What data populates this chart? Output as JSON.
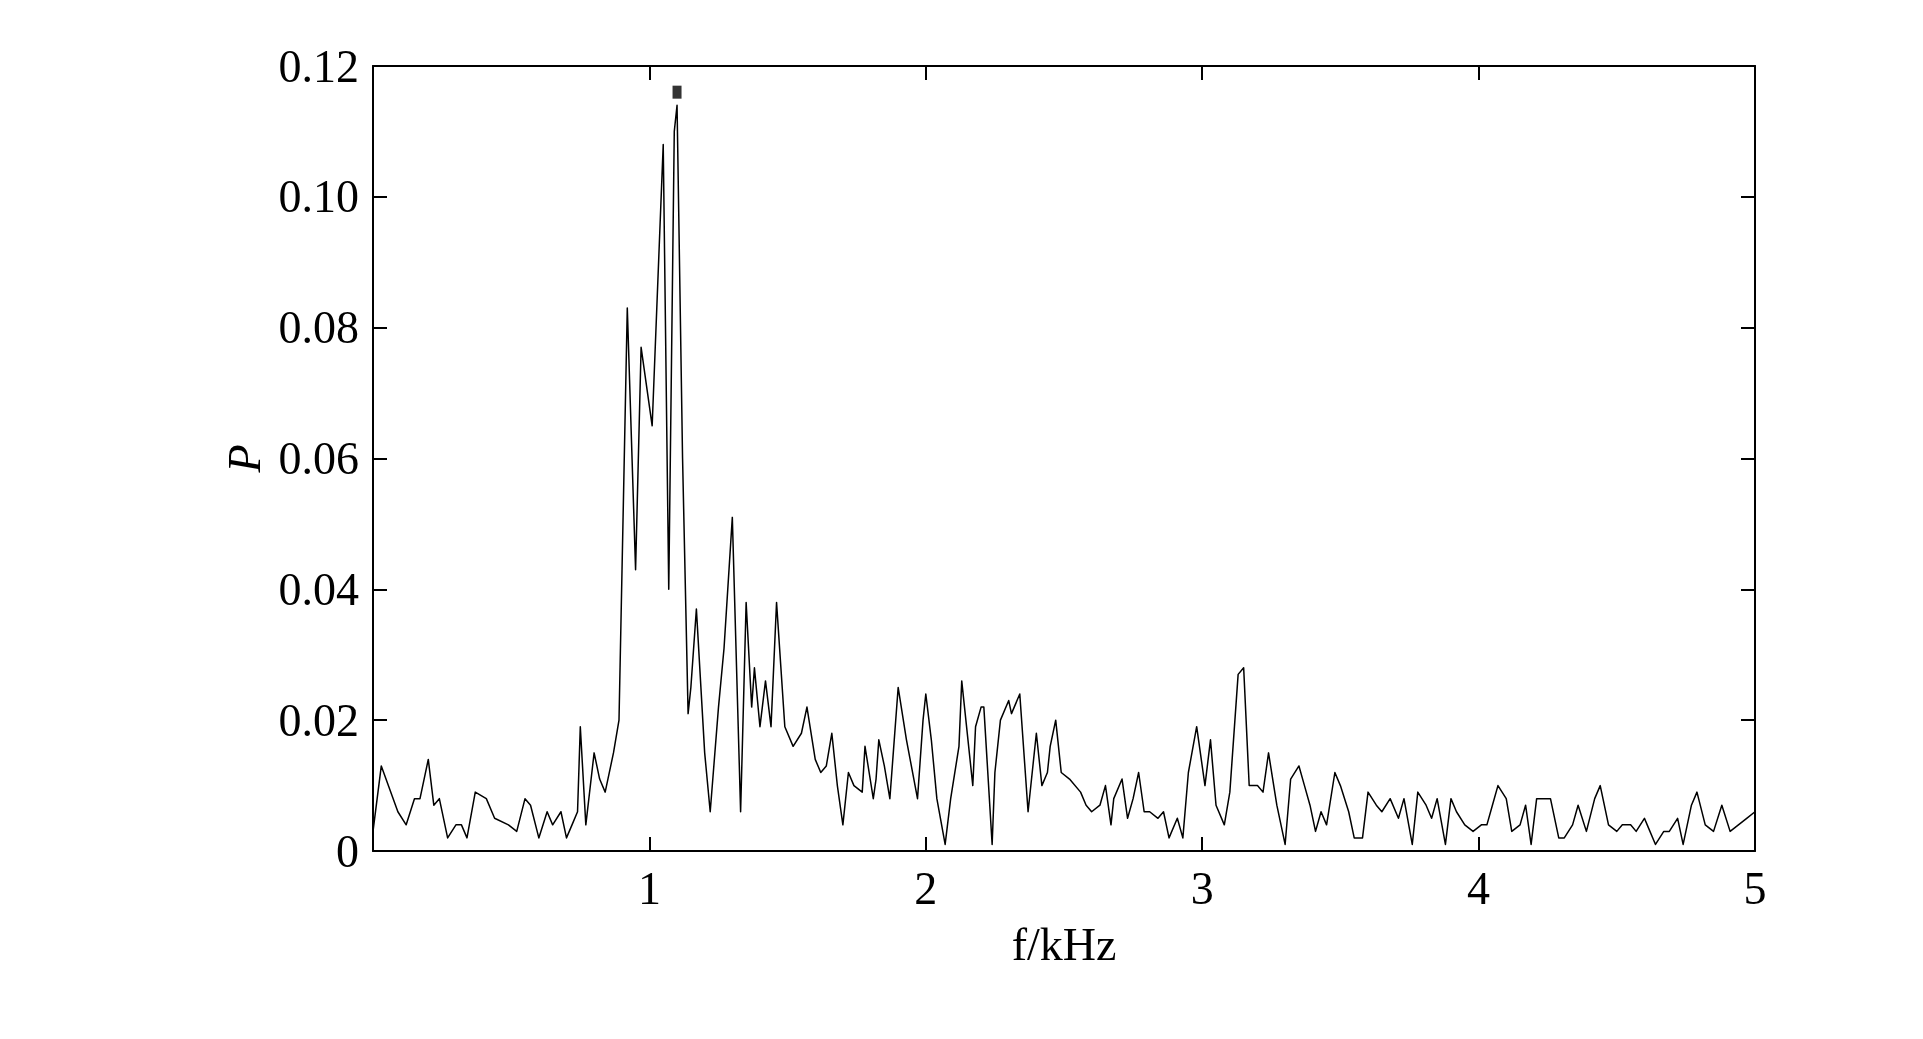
{
  "chart_data": {
    "type": "line",
    "xlabel": "f/kHz",
    "ylabel": "P",
    "xlim": [
      0,
      5
    ],
    "ylim": [
      0,
      0.12
    ],
    "xticks": [
      {
        "value": 0,
        "label": null
      },
      1,
      2,
      3,
      4,
      5
    ],
    "yticks": [
      0,
      0.02,
      0.04,
      0.06,
      0.08,
      {
        "value": 0.1,
        "label": "0.10"
      },
      0.12
    ],
    "grid": false,
    "series": [
      {
        "color": "#000000",
        "marker": "none",
        "x": [
          0,
          0.03,
          0.09,
          0.12,
          0.15,
          0.17,
          0.2,
          0.22,
          0.24,
          0.27,
          0.3,
          0.32,
          0.34,
          0.37,
          0.41,
          0.44,
          0.49,
          0.52,
          0.55,
          0.57,
          0.6,
          0.63,
          0.65,
          0.68,
          0.7,
          0.72,
          0.74,
          0.75,
          0.77,
          0.8,
          0.82,
          0.84,
          0.87,
          0.89,
          0.92,
          0.95,
          0.97,
          1.01,
          1.05,
          1.07,
          1.09,
          1.1,
          1.12,
          1.14,
          1.15,
          1.17,
          1.2,
          1.22,
          1.25,
          1.27,
          1.3,
          1.33,
          1.35,
          1.37,
          1.38,
          1.4,
          1.42,
          1.44,
          1.46,
          1.49,
          1.52,
          1.55,
          1.57,
          1.6,
          1.62,
          1.64,
          1.66,
          1.68,
          1.7,
          1.72,
          1.74,
          1.77,
          1.78,
          1.81,
          1.82,
          1.83,
          1.85,
          1.87,
          1.9,
          1.93,
          1.97,
          1.99,
          2.0,
          2.02,
          2.04,
          2.07,
          2.09,
          2.12,
          2.13,
          2.17,
          2.18,
          2.2,
          2.21,
          2.24,
          2.25,
          2.27,
          2.3,
          2.31,
          2.34,
          2.37,
          2.4,
          2.42,
          2.44,
          2.45,
          2.47,
          2.49,
          2.52,
          2.56,
          2.58,
          2.6,
          2.63,
          2.65,
          2.67,
          2.68,
          2.71,
          2.73,
          2.75,
          2.77,
          2.79,
          2.81,
          2.84,
          2.86,
          2.88,
          2.91,
          2.93,
          2.95,
          2.98,
          3.01,
          3.03,
          3.05,
          3.08,
          3.1,
          3.13,
          3.15,
          3.17,
          3.2,
          3.22,
          3.24,
          3.27,
          3.3,
          3.32,
          3.35,
          3.37,
          3.39,
          3.41,
          3.43,
          3.45,
          3.48,
          3.5,
          3.53,
          3.55,
          3.58,
          3.6,
          3.63,
          3.65,
          3.68,
          3.71,
          3.73,
          3.76,
          3.78,
          3.81,
          3.83,
          3.85,
          3.88,
          3.9,
          3.92,
          3.95,
          3.98,
          4.01,
          4.03,
          4.05,
          4.07,
          4.1,
          4.12,
          4.15,
          4.17,
          4.19,
          4.21,
          4.23,
          4.26,
          4.29,
          4.31,
          4.34,
          4.36,
          4.39,
          4.42,
          4.44,
          4.47,
          4.5,
          4.52,
          4.55,
          4.57,
          4.6,
          4.61,
          4.64,
          4.67,
          4.69,
          4.72,
          4.74,
          4.77,
          4.79,
          4.82,
          4.85,
          4.88,
          4.91,
          4.94,
          4.97,
          5.0
        ],
        "values": [
          0.003,
          0.013,
          0.006,
          0.004,
          0.008,
          0.008,
          0.014,
          0.007,
          0.008,
          0.002,
          0.004,
          0.004,
          0.002,
          0.009,
          0.008,
          0.005,
          0.004,
          0.003,
          0.008,
          0.007,
          0.002,
          0.006,
          0.004,
          0.006,
          0.002,
          0.004,
          0.006,
          0.019,
          0.004,
          0.015,
          0.011,
          0.009,
          0.015,
          0.02,
          0.083,
          0.043,
          0.077,
          0.065,
          0.108,
          0.04,
          0.11,
          0.114,
          0.06,
          0.021,
          0.025,
          0.037,
          0.015,
          0.006,
          0.022,
          0.031,
          0.051,
          0.006,
          0.038,
          0.022,
          0.028,
          0.019,
          0.026,
          0.019,
          0.038,
          0.019,
          0.016,
          0.018,
          0.022,
          0.014,
          0.012,
          0.013,
          0.018,
          0.01,
          0.004,
          0.012,
          0.01,
          0.009,
          0.016,
          0.008,
          0.011,
          0.017,
          0.013,
          0.008,
          0.025,
          0.017,
          0.008,
          0.02,
          0.024,
          0.017,
          0.008,
          0.001,
          0.008,
          0.016,
          0.026,
          0.01,
          0.019,
          0.022,
          0.022,
          0.001,
          0.012,
          0.02,
          0.023,
          0.021,
          0.024,
          0.006,
          0.018,
          0.01,
          0.012,
          0.016,
          0.02,
          0.012,
          0.011,
          0.009,
          0.007,
          0.006,
          0.007,
          0.01,
          0.004,
          0.008,
          0.011,
          0.005,
          0.008,
          0.012,
          0.006,
          0.006,
          0.005,
          0.006,
          0.002,
          0.005,
          0.002,
          0.012,
          0.019,
          0.01,
          0.017,
          0.007,
          0.004,
          0.009,
          0.027,
          0.028,
          0.01,
          0.01,
          0.009,
          0.015,
          0.007,
          0.001,
          0.011,
          0.013,
          0.01,
          0.007,
          0.003,
          0.006,
          0.004,
          0.012,
          0.01,
          0.006,
          0.002,
          0.002,
          0.009,
          0.007,
          0.006,
          0.008,
          0.005,
          0.008,
          0.001,
          0.009,
          0.007,
          0.005,
          0.008,
          0.001,
          0.008,
          0.006,
          0.004,
          0.003,
          0.004,
          0.004,
          0.007,
          0.01,
          0.008,
          0.003,
          0.004,
          0.007,
          0.001,
          0.008,
          0.008,
          0.008,
          0.002,
          0.002,
          0.004,
          0.007,
          0.003,
          0.008,
          0.01,
          0.004,
          0.003,
          0.004,
          0.004,
          0.003,
          0.005,
          0.004,
          0.001,
          0.003,
          0.003,
          0.005,
          0.001,
          0.007,
          0.009,
          0.004,
          0.003,
          0.007,
          0.003,
          0.004,
          0.005,
          0.006
        ]
      },
      {
        "type": "scatter",
        "color": "#000000",
        "marker": "square",
        "x": [
          1.1
        ],
        "values": [
          0.116
        ]
      }
    ]
  }
}
